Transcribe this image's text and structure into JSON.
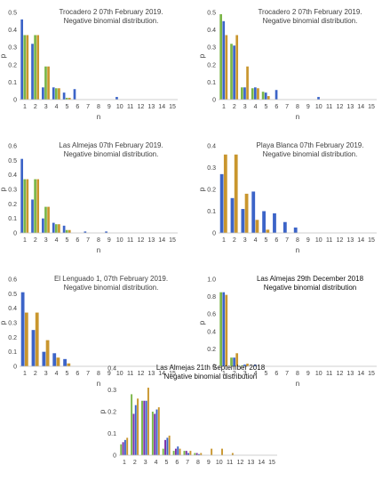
{
  "palette": {
    "green": "#7AB648",
    "blue": "#3C64C8",
    "gold": "#C9962E",
    "purple": "#7B2FA8"
  },
  "chart_data": [
    {
      "type": "bar",
      "title": [
        "Trocadero 2 07th February 2019.",
        "Negative binomial distribution."
      ],
      "xlabel": "n",
      "ylabel": "p",
      "ylim": [
        0,
        0.5
      ],
      "yticks": [
        "0",
        "0.1",
        "0.2",
        "0.3",
        "0.4",
        "0.5"
      ],
      "categories": [
        "1",
        "2",
        "3",
        "4",
        "5",
        "6",
        "7",
        "8",
        "9",
        "10",
        "11",
        "12",
        "13",
        "14",
        "15"
      ],
      "series": [
        {
          "color": "blue",
          "values": [
            0.46,
            0.32,
            0.07,
            0.07,
            0.04,
            0.06,
            0,
            0,
            0,
            0.015,
            0,
            0,
            0,
            0,
            0
          ]
        },
        {
          "color": "green",
          "values": [
            0.37,
            0.37,
            0.19,
            0.065,
            0.01,
            0,
            0,
            0,
            0,
            0,
            0,
            0,
            0,
            0,
            0
          ]
        },
        {
          "color": "gold",
          "values": [
            0.37,
            0.37,
            0.19,
            0.065,
            0.01,
            0,
            0,
            0,
            0,
            0,
            0,
            0,
            0,
            0,
            0
          ]
        }
      ]
    },
    {
      "type": "bar",
      "title": [
        "Trocadero 2 07th February 2019.",
        "Negative binomial distribution."
      ],
      "xlabel": "n",
      "ylabel": "p",
      "ylim": [
        0,
        0.5
      ],
      "yticks": [
        "0",
        "0.1",
        "0.2",
        "0.3",
        "0.4",
        "0.5"
      ],
      "categories": [
        "1",
        "2",
        "3",
        "4",
        "5",
        "6",
        "7",
        "8",
        "9",
        "10",
        "11",
        "12",
        "13",
        "14",
        "15"
      ],
      "series": [
        {
          "color": "green",
          "values": [
            0.49,
            0.32,
            0.07,
            0.065,
            0.045,
            0,
            0,
            0,
            0,
            0,
            0,
            0,
            0,
            0,
            0
          ]
        },
        {
          "color": "blue",
          "values": [
            0.45,
            0.31,
            0.07,
            0.07,
            0.04,
            0.055,
            0,
            0,
            0,
            0.015,
            0,
            0,
            0,
            0,
            0
          ]
        },
        {
          "color": "gold",
          "values": [
            0.37,
            0.37,
            0.19,
            0.065,
            0.02,
            0,
            0,
            0,
            0,
            0,
            0,
            0,
            0,
            0,
            0
          ]
        }
      ]
    },
    {
      "type": "bar",
      "title": [
        "Las Almejas 07th February 2019.",
        "Negative binomial distribution."
      ],
      "xlabel": "n",
      "ylabel": "p",
      "ylim": [
        0,
        0.6
      ],
      "yticks": [
        "0",
        "0.1",
        "0.2",
        "0.3",
        "0.4",
        "0.5",
        "0.6"
      ],
      "categories": [
        "1",
        "2",
        "3",
        "4",
        "5",
        "6",
        "7",
        "8",
        "9",
        "10",
        "11",
        "12",
        "13",
        "14",
        "15"
      ],
      "series": [
        {
          "color": "blue",
          "values": [
            0.51,
            0.23,
            0.1,
            0.07,
            0.05,
            0,
            0.01,
            0,
            0.01,
            0,
            0,
            0,
            0,
            0,
            0
          ]
        },
        {
          "color": "green",
          "values": [
            0.37,
            0.37,
            0.18,
            0.06,
            0.02,
            0,
            0,
            0,
            0,
            0,
            0,
            0,
            0,
            0,
            0
          ]
        },
        {
          "color": "gold",
          "values": [
            0.37,
            0.37,
            0.18,
            0.06,
            0.02,
            0,
            0,
            0,
            0,
            0,
            0,
            0,
            0,
            0,
            0
          ]
        }
      ]
    },
    {
      "type": "bar",
      "title": [
        "Playa Blanca 07th February 2019.",
        "Negative binomial distribution."
      ],
      "xlabel": "n",
      "ylabel": "p",
      "ylim": [
        0,
        0.4
      ],
      "yticks": [
        "0",
        "0.1",
        "0.2",
        "0.3",
        "0.4"
      ],
      "categories": [
        "1",
        "2",
        "3",
        "4",
        "5",
        "6",
        "7",
        "8",
        "9",
        "10",
        "11",
        "12",
        "13",
        "14",
        "15"
      ],
      "series": [
        {
          "color": "blue",
          "values": [
            0.27,
            0.16,
            0.11,
            0.19,
            0.1,
            0.09,
            0.05,
            0.025,
            0,
            0,
            0,
            0,
            0,
            0,
            0
          ]
        },
        {
          "color": "gold",
          "values": [
            0.36,
            0.36,
            0.18,
            0.06,
            0.015,
            0,
            0,
            0,
            0,
            0,
            0,
            0,
            0,
            0,
            0
          ]
        }
      ]
    },
    {
      "type": "bar",
      "title": [
        "El Lenguado 1, 07th February 2019.",
        "Negative binomial distribution."
      ],
      "xlabel": "n",
      "ylabel": "p",
      "ylim": [
        0,
        0.6
      ],
      "yticks": [
        "0",
        "0.1",
        "0.2",
        "0.3",
        "0.4",
        "0.5",
        "0.6"
      ],
      "categories": [
        "1",
        "2",
        "3",
        "4",
        "5",
        "6",
        "7",
        "8",
        "9",
        "10",
        "11",
        "12",
        "13",
        "14",
        "15"
      ],
      "series": [
        {
          "color": "blue",
          "values": [
            0.51,
            0.25,
            0.1,
            0.09,
            0.05,
            0,
            0,
            0,
            0,
            0,
            0,
            0,
            0,
            0,
            0
          ]
        },
        {
          "color": "gold",
          "values": [
            0.37,
            0.37,
            0.18,
            0.06,
            0.02,
            0,
            0,
            0,
            0,
            0,
            0,
            0,
            0,
            0,
            0
          ]
        }
      ]
    },
    {
      "type": "bar",
      "title": [
        "Las Almejas 29th December 2018",
        "Negative binomial distribution"
      ],
      "title_dark": true,
      "xlabel": "n",
      "ylabel": "p",
      "ylim": [
        0,
        1
      ],
      "yticks": [
        "0",
        "0.2",
        "0.4",
        "0.6",
        "0.8",
        "1.0"
      ],
      "categories": [
        "1",
        "2",
        "3",
        "4",
        "5",
        "6",
        "7",
        "8",
        "9",
        "10",
        "11",
        "12",
        "13",
        "14",
        "15"
      ],
      "series": [
        {
          "color": "green",
          "values": [
            0.85,
            0.1,
            0.01,
            0,
            0,
            0,
            0,
            0,
            0,
            0,
            0,
            0,
            0,
            0,
            0
          ]
        },
        {
          "color": "blue",
          "values": [
            0.85,
            0.1,
            0.02,
            0.02,
            0,
            0,
            0,
            0,
            0,
            0,
            0,
            0,
            0,
            0,
            0
          ]
        },
        {
          "color": "gold",
          "values": [
            0.82,
            0.15,
            0.03,
            0,
            0,
            0,
            0,
            0,
            0,
            0,
            0,
            0,
            0,
            0,
            0
          ]
        }
      ]
    },
    {
      "type": "bar",
      "title": [
        "Las Almejas 21th September 2018",
        "Negative binomial distribution"
      ],
      "title_dark": true,
      "xlabel": "",
      "ylabel": "p",
      "ylim": [
        0,
        0.4
      ],
      "yticks": [
        "0",
        "0.1",
        "0.2",
        "0.3",
        "0.4"
      ],
      "categories": [
        "1",
        "2",
        "3",
        "4",
        "5",
        "6",
        "7",
        "8",
        "9",
        "10",
        "11",
        "12",
        "13",
        "14",
        "15"
      ],
      "series": [
        {
          "color": "green",
          "values": [
            0.05,
            0.28,
            0.25,
            0.2,
            0.03,
            0.02,
            0.02,
            0.01,
            0,
            0,
            0,
            0,
            0,
            0,
            0
          ]
        },
        {
          "color": "purple",
          "values": [
            0.06,
            0.19,
            0.25,
            0.19,
            0.07,
            0.03,
            0.02,
            0.01,
            0,
            0,
            0,
            0,
            0,
            0,
            0
          ]
        },
        {
          "color": "blue",
          "values": [
            0.07,
            0.23,
            0.25,
            0.21,
            0.08,
            0.04,
            0.01,
            0.005,
            0,
            0,
            0,
            0,
            0,
            0,
            0
          ]
        },
        {
          "color": "gold",
          "values": [
            0.08,
            0.26,
            0.31,
            0.22,
            0.09,
            0.03,
            0.02,
            0.01,
            0.03,
            0.03,
            0.01,
            0,
            0,
            0,
            0
          ]
        }
      ]
    }
  ]
}
